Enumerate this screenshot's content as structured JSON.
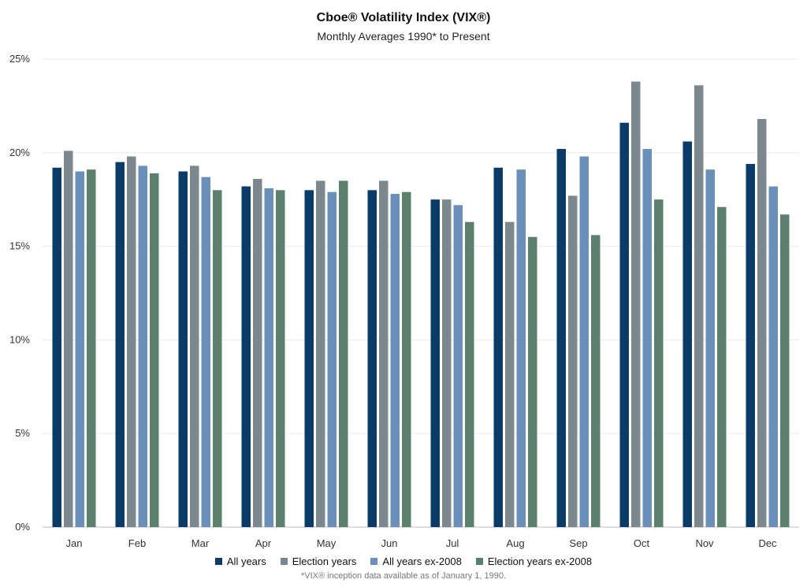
{
  "chart_data": {
    "type": "bar",
    "title": "Cboe® Volatility Index (VIX®)",
    "subtitle": "Monthly Averages 1990* to Present",
    "xlabel": "",
    "ylabel": "",
    "ylim": [
      0,
      25
    ],
    "yticks": [
      "0%",
      "5%",
      "10%",
      "15%",
      "20%",
      "25%"
    ],
    "grid": true,
    "legend_position": "bottom",
    "categories": [
      "Jan",
      "Feb",
      "Mar",
      "Apr",
      "May",
      "Jun",
      "Jul",
      "Aug",
      "Sep",
      "Oct",
      "Nov",
      "Dec"
    ],
    "series": [
      {
        "name": "All years",
        "color": "#0b3c68",
        "values": [
          19.2,
          19.5,
          19.0,
          18.2,
          18.0,
          18.0,
          17.5,
          19.2,
          20.2,
          21.6,
          20.6,
          19.4
        ]
      },
      {
        "name": "Election years",
        "color": "#7d878e",
        "values": [
          20.1,
          19.8,
          19.3,
          18.6,
          18.5,
          18.5,
          17.5,
          16.3,
          17.7,
          23.8,
          23.6,
          21.8
        ]
      },
      {
        "name": "All years ex-2008",
        "color": "#6a8fb8",
        "values": [
          19.0,
          19.3,
          18.7,
          18.1,
          17.9,
          17.8,
          17.2,
          19.1,
          19.8,
          20.2,
          19.1,
          18.2
        ]
      },
      {
        "name": "Election years ex-2008",
        "color": "#5b806e",
        "values": [
          19.1,
          18.9,
          18.0,
          18.0,
          18.5,
          17.9,
          16.3,
          15.5,
          15.6,
          17.5,
          17.1,
          16.7
        ]
      }
    ],
    "footnote": "*VIX® inception data available as of January 1, 1990."
  }
}
